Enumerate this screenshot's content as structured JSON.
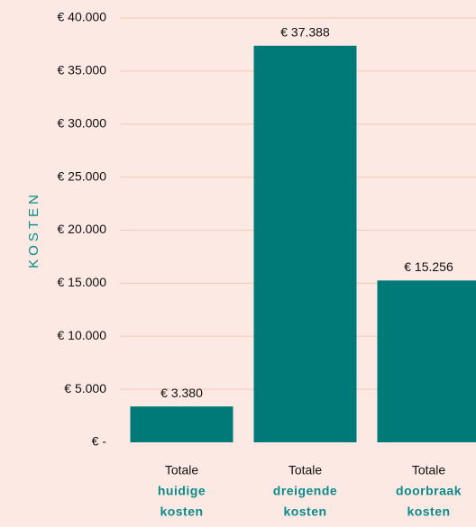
{
  "chart_data": {
    "type": "bar",
    "y_axis_label": "KOSTEN",
    "categories": [
      [
        "Totale",
        "huidige",
        "kosten"
      ],
      [
        "Totale",
        "dreigende",
        "kosten"
      ],
      [
        "Totale",
        "doorbraak",
        "kosten"
      ]
    ],
    "values": [
      3380,
      37388,
      15256
    ],
    "value_labels": [
      "€ 3.380",
      "€ 37.388",
      "€ 15.256"
    ],
    "color": "#007a78",
    "ylim": [
      0,
      40000
    ],
    "yticks": [
      {
        "value": 0,
        "label": "€ -"
      },
      {
        "value": 5000,
        "label": "€ 5.000"
      },
      {
        "value": 10000,
        "label": "€ 10.000"
      },
      {
        "value": 15000,
        "label": "€ 15.000"
      },
      {
        "value": 20000,
        "label": "€ 20.000"
      },
      {
        "value": 25000,
        "label": "€ 25.000"
      },
      {
        "value": 30000,
        "label": "€ 30.000"
      },
      {
        "value": 35000,
        "label": "€ 35.000"
      },
      {
        "value": 40000,
        "label": "€ 40.000"
      }
    ],
    "grid": true
  }
}
